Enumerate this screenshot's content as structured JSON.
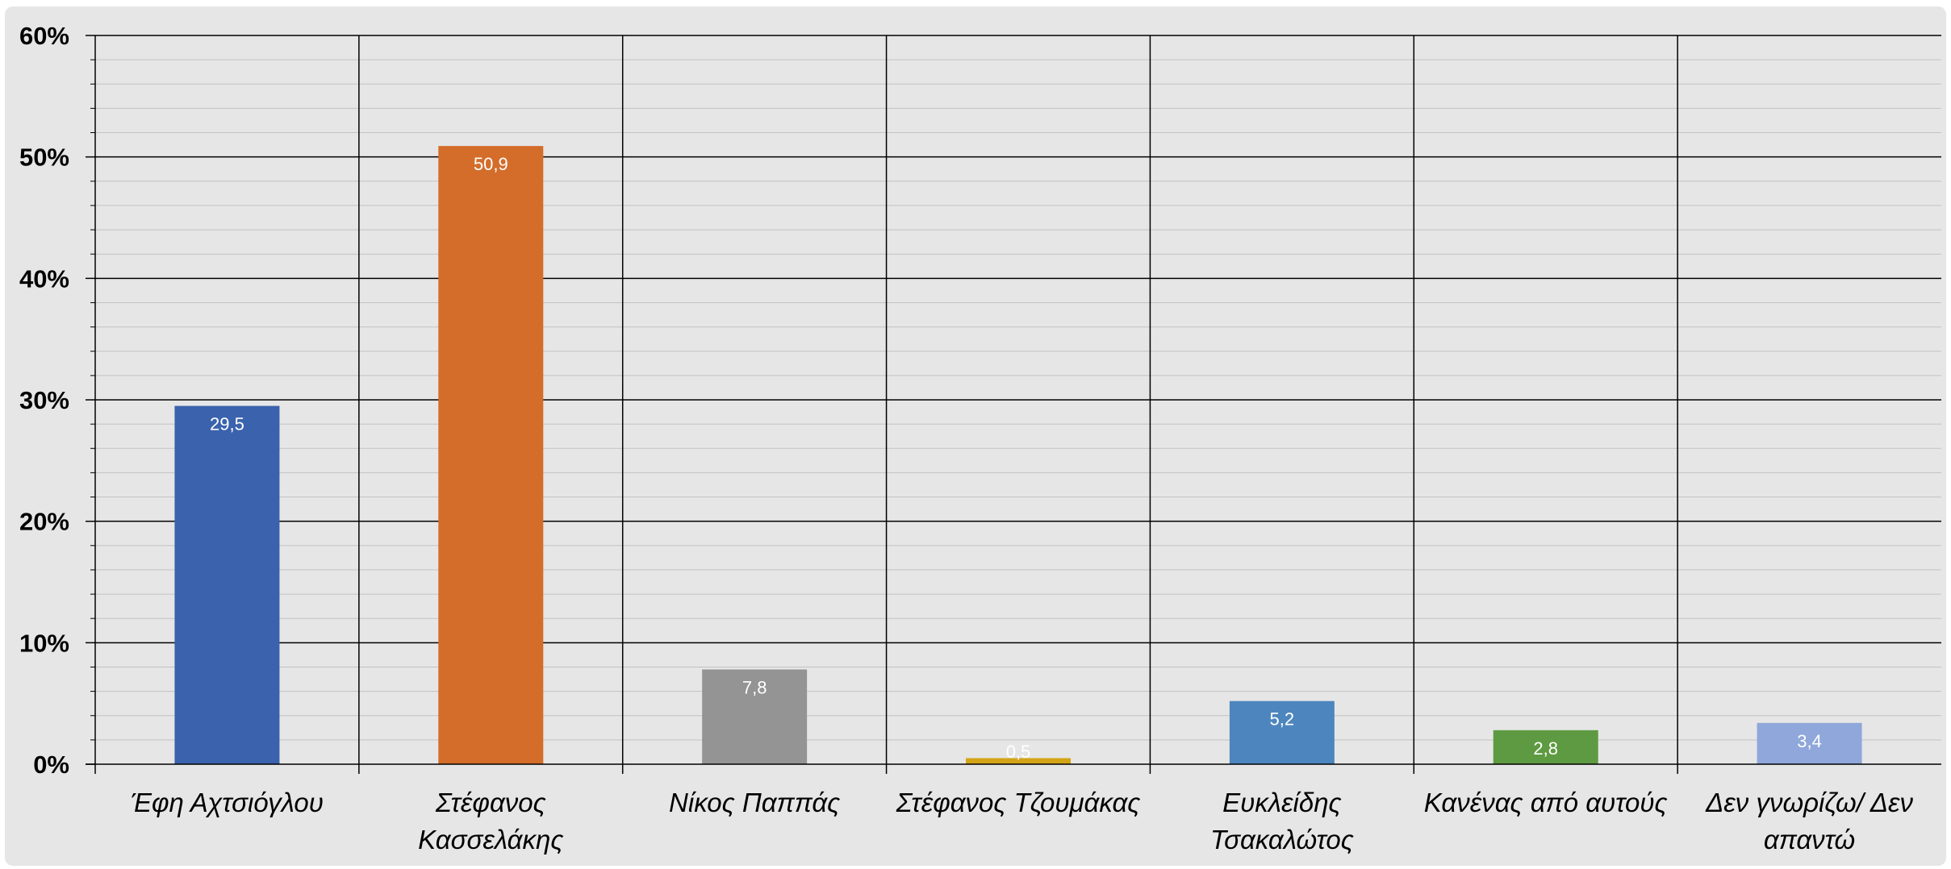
{
  "chart_data": {
    "type": "bar",
    "categories": [
      [
        "Έφη Αχτσιόγλου"
      ],
      [
        "Στέφανος",
        "Κασσελάκης"
      ],
      [
        "Νίκος Παππάς"
      ],
      [
        "Στέφανος Τζουμάκας"
      ],
      [
        "Ευκλείδης",
        "Τσακαλώτος"
      ],
      [
        "Κανένας από αυτούς"
      ],
      [
        "Δεν γνωρίζω/  Δεν",
        "απαντώ"
      ]
    ],
    "values": [
      29.5,
      50.9,
      7.8,
      0.5,
      5.2,
      2.8,
      3.4
    ],
    "data_labels": [
      "29,5",
      "50,9",
      "7,8",
      "0,5",
      "5,2",
      "2,8",
      "3,4"
    ],
    "colors": [
      "#3a62ad",
      "#d46d2a",
      "#949494",
      "#d4a417",
      "#4d86bf",
      "#5e9a41",
      "#8fa7da"
    ],
    "ylim": [
      0,
      60
    ],
    "yticks": [
      0,
      10,
      20,
      30,
      40,
      50,
      60
    ],
    "ytick_labels": [
      "0%",
      "10%",
      "20%",
      "30%",
      "40%",
      "50%",
      "60%"
    ],
    "minor_step": 2,
    "grid": true,
    "title": "",
    "xlabel": "",
    "ylabel": ""
  }
}
